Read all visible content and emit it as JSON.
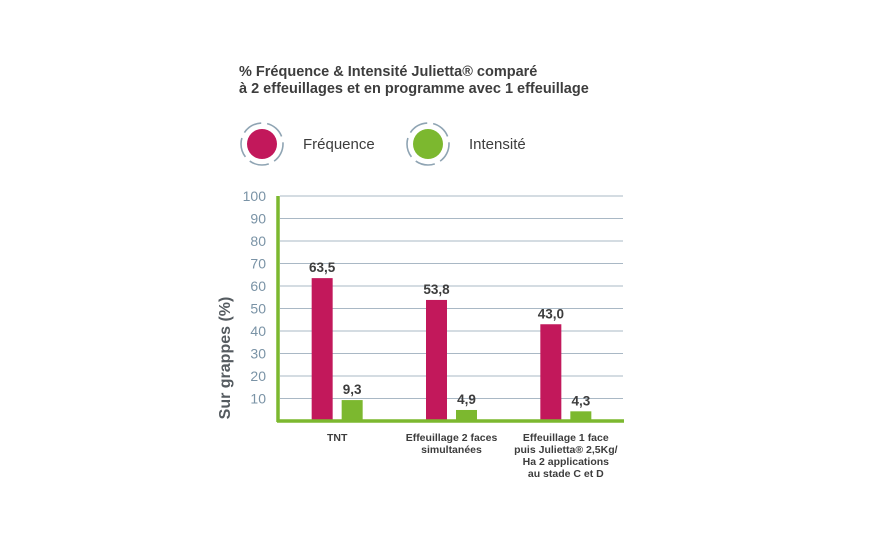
{
  "chart_data": {
    "type": "bar",
    "title_lines": [
      "% Fréquence & Intensité Julietta® comparé",
      "à 2 effeuillages et en programme avec 1 effeuillage"
    ],
    "ylabel": "Sur grappes (%)",
    "xlabel": "",
    "ylim": [
      0,
      100
    ],
    "yticks": [
      "10",
      "20",
      "30",
      "40",
      "50",
      "60",
      "70",
      "80",
      "90",
      "100"
    ],
    "grid": true,
    "legend_position": "top-left",
    "categories": [
      [
        "TNT"
      ],
      [
        "Effeuillage 2 faces",
        "simultanées"
      ],
      [
        "Effeuillage 1 face",
        "puis Julietta® 2,5Kg/",
        "Ha 2 applications",
        "au stade C et D"
      ]
    ],
    "series": [
      {
        "name": "Fréquence",
        "color": "#c2185b",
        "values": [
          63.5,
          53.8,
          43.0
        ],
        "labels": [
          "63,5",
          "53,8",
          "43,0"
        ]
      },
      {
        "name": "Intensité",
        "color": "#7cb82f",
        "values": [
          9.3,
          4.9,
          4.3
        ],
        "labels": [
          "9,3",
          "4,9",
          "4,3"
        ]
      }
    ],
    "colors": {
      "axis": "#7cb82f",
      "grid": "#a9b8c5",
      "tick_text": "#7a93a6",
      "legend_ring": "#8fa4b3"
    }
  }
}
